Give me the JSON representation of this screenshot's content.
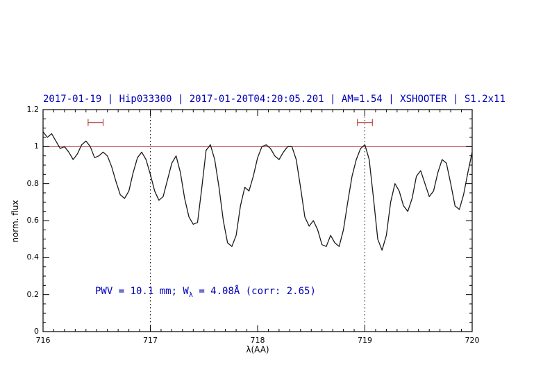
{
  "title_text": "2017-01-19 | Hip033300 | 2017-01-20T04:20:05.201 | AM=1.54 | XSHOOTER | S1.2x11",
  "annotation": {
    "prefix": "PWV = 10.1 mm; W",
    "sub": "λ",
    "suffix": " = 4.08Å (corr: 2.65)"
  },
  "chart_data": {
    "type": "line",
    "title": "2017-01-19 | Hip033300 | 2017-01-20T04:20:05.201 | AM=1.54 | XSHOOTER | S1.2x11",
    "xlabel": "λ(AA)",
    "ylabel": "norm. flux",
    "xlim": [
      716,
      720
    ],
    "ylim": [
      0,
      1.2
    ],
    "grid": false,
    "x_ticks": [
      716,
      717,
      718,
      719,
      720
    ],
    "x_tick_labels": [
      "716",
      "717",
      "718",
      "719",
      "720"
    ],
    "y_ticks": [
      0,
      0.2,
      0.4,
      0.6,
      0.8,
      1.0,
      1.2
    ],
    "y_tick_labels": [
      "0",
      "0.2",
      "0.4",
      "0.6",
      "0.8",
      "1",
      "1.2"
    ],
    "dotted_vlines": [
      717,
      719
    ],
    "continuum_line_y": 1.0,
    "range_markers": [
      {
        "x1": 716.42,
        "x2": 716.56,
        "y": 1.13
      },
      {
        "x1": 718.93,
        "x2": 719.07,
        "y": 1.13
      }
    ],
    "colors": {
      "spectrum": "#1a1a1a",
      "continuum": "#bb4444",
      "marker": "#bb4444",
      "title": "#0000bb",
      "annotation": "#0000bb",
      "axis": "#000000"
    },
    "series": [
      {
        "name": "telluric-spectrum",
        "x_start": 716.0,
        "x_step": 0.04,
        "flux": [
          1.08,
          1.05,
          1.07,
          1.03,
          0.99,
          1.0,
          0.97,
          0.93,
          0.96,
          1.01,
          1.03,
          1.0,
          0.94,
          0.95,
          0.97,
          0.95,
          0.89,
          0.81,
          0.74,
          0.72,
          0.76,
          0.86,
          0.94,
          0.97,
          0.93,
          0.85,
          0.76,
          0.71,
          0.73,
          0.82,
          0.91,
          0.95,
          0.86,
          0.72,
          0.62,
          0.58,
          0.59,
          0.78,
          0.98,
          1.01,
          0.93,
          0.78,
          0.6,
          0.48,
          0.46,
          0.52,
          0.68,
          0.78,
          0.76,
          0.84,
          0.94,
          1.0,
          1.01,
          0.99,
          0.95,
          0.93,
          0.97,
          1.0,
          1.0,
          0.93,
          0.78,
          0.62,
          0.57,
          0.6,
          0.55,
          0.47,
          0.46,
          0.52,
          0.48,
          0.46,
          0.55,
          0.7,
          0.84,
          0.93,
          0.99,
          1.01,
          0.93,
          0.72,
          0.5,
          0.44,
          0.52,
          0.7,
          0.8,
          0.76,
          0.68,
          0.65,
          0.72,
          0.84,
          0.87,
          0.8,
          0.73,
          0.76,
          0.86,
          0.93,
          0.91,
          0.8,
          0.68,
          0.66,
          0.74,
          0.86,
          0.97
        ]
      }
    ]
  }
}
